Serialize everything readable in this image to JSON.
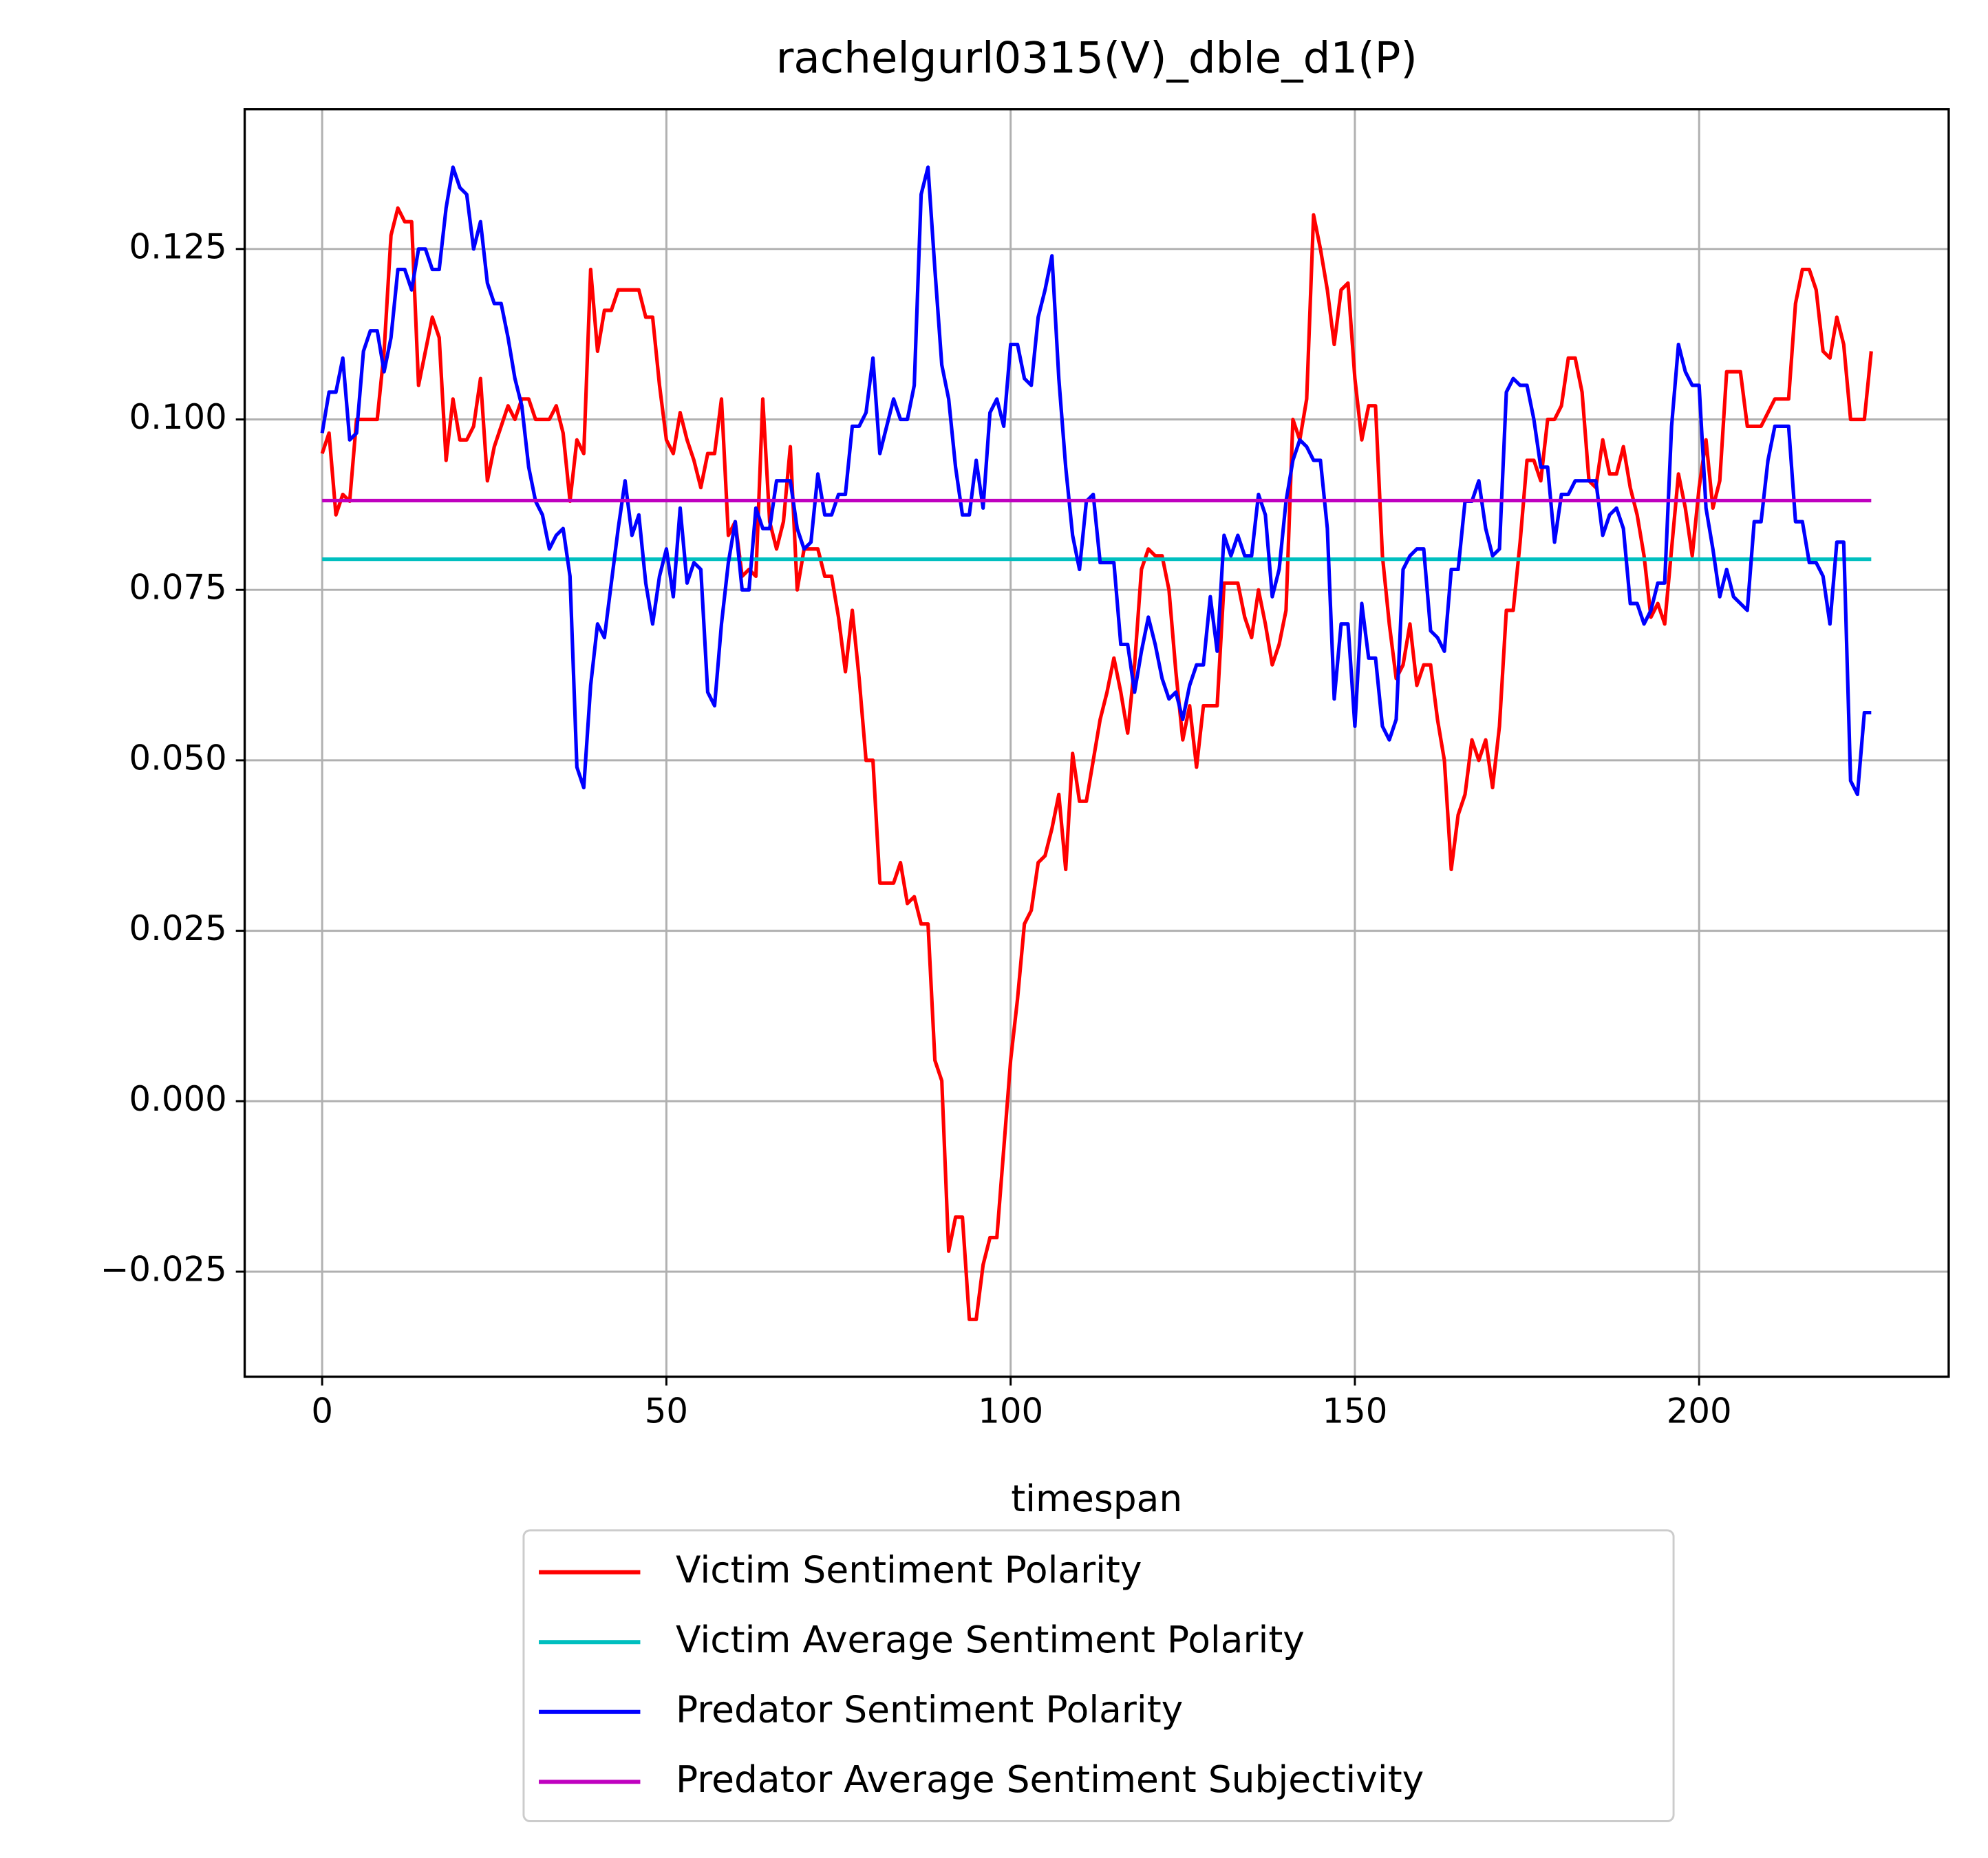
{
  "chart_data": {
    "type": "line",
    "title": "rachelgurl0315(V)_dble_d1(P)",
    "x_label": "timespan",
    "x": [
      0,
      1,
      2,
      3,
      4,
      5,
      6,
      7,
      8,
      9,
      10,
      11,
      12,
      13,
      14,
      15,
      16,
      17,
      18,
      19,
      20,
      21,
      22,
      23,
      24,
      25,
      26,
      27,
      28,
      29,
      30,
      31,
      32,
      33,
      34,
      35,
      36,
      37,
      38,
      39,
      40,
      41,
      42,
      43,
      44,
      45,
      46,
      47,
      48,
      49,
      50,
      51,
      52,
      53,
      54,
      55,
      56,
      57,
      58,
      59,
      60,
      61,
      62,
      63,
      64,
      65,
      66,
      67,
      68,
      69,
      70,
      71,
      72,
      73,
      74,
      75,
      76,
      77,
      78,
      79,
      80,
      81,
      82,
      83,
      84,
      85,
      86,
      87,
      88,
      89,
      90,
      91,
      92,
      93,
      94,
      95,
      96,
      97,
      98,
      99,
      100,
      101,
      102,
      103,
      104,
      105,
      106,
      107,
      108,
      109,
      110,
      111,
      112,
      113,
      114,
      115,
      116,
      117,
      118,
      119,
      120,
      121,
      122,
      123,
      124,
      125,
      126,
      127,
      128,
      129,
      130,
      131,
      132,
      133,
      134,
      135,
      136,
      137,
      138,
      139,
      140,
      141,
      142,
      143,
      144,
      145,
      146,
      147,
      148,
      149,
      150,
      151,
      152,
      153,
      154,
      155,
      156,
      157,
      158,
      159,
      160,
      161,
      162,
      163,
      164,
      165,
      166,
      167,
      168,
      169,
      170,
      171,
      172,
      173,
      174,
      175,
      176,
      177,
      178,
      179,
      180,
      181,
      182,
      183,
      184,
      185,
      186,
      187,
      188,
      189,
      190,
      191,
      192,
      193,
      194,
      195,
      196,
      197,
      198,
      199,
      200,
      201,
      202,
      203,
      204,
      205,
      206,
      207,
      208,
      209,
      210,
      211,
      212,
      213,
      214,
      215,
      216,
      217,
      218,
      219,
      220,
      221,
      222,
      223,
      224,
      225
    ],
    "series": [
      {
        "name": "Victim Sentiment Polarity",
        "color": "#ff0000",
        "values": [
          0.095,
          0.098,
          0.086,
          0.089,
          0.088,
          0.1,
          0.1,
          0.1,
          0.1,
          0.11,
          0.127,
          0.131,
          0.129,
          0.129,
          0.105,
          0.11,
          0.115,
          0.112,
          0.094,
          0.103,
          0.097,
          0.097,
          0.099,
          0.106,
          0.091,
          0.096,
          0.099,
          0.102,
          0.1,
          0.103,
          0.103,
          0.1,
          0.1,
          0.1,
          0.102,
          0.098,
          0.088,
          0.097,
          0.095,
          0.122,
          0.11,
          0.116,
          0.116,
          0.119,
          0.119,
          0.119,
          0.119,
          0.115,
          0.115,
          0.105,
          0.097,
          0.095,
          0.101,
          0.097,
          0.094,
          0.09,
          0.095,
          0.095,
          0.103,
          0.083,
          0.085,
          0.077,
          0.078,
          0.077,
          0.103,
          0.085,
          0.081,
          0.085,
          0.096,
          0.075,
          0.081,
          0.081,
          0.081,
          0.077,
          0.077,
          0.071,
          0.063,
          0.072,
          0.062,
          0.05,
          0.05,
          0.032,
          0.032,
          0.032,
          0.035,
          0.029,
          0.03,
          0.026,
          0.026,
          0.006,
          0.003,
          -0.022,
          -0.017,
          -0.017,
          -0.032,
          -0.032,
          -0.024,
          -0.02,
          -0.02,
          -0.007,
          0.006,
          0.015,
          0.026,
          0.028,
          0.035,
          0.036,
          0.04,
          0.045,
          0.034,
          0.051,
          0.044,
          0.044,
          0.05,
          0.056,
          0.06,
          0.065,
          0.06,
          0.054,
          0.064,
          0.078,
          0.081,
          0.08,
          0.08,
          0.075,
          0.063,
          0.053,
          0.058,
          0.049,
          0.058,
          0.058,
          0.058,
          0.076,
          0.076,
          0.076,
          0.071,
          0.068,
          0.075,
          0.07,
          0.064,
          0.067,
          0.072,
          0.1,
          0.097,
          0.103,
          0.13,
          0.125,
          0.119,
          0.111,
          0.119,
          0.12,
          0.106,
          0.097,
          0.102,
          0.102,
          0.08,
          0.07,
          0.062,
          0.064,
          0.07,
          0.061,
          0.064,
          0.064,
          0.056,
          0.05,
          0.034,
          0.042,
          0.045,
          0.053,
          0.05,
          0.053,
          0.046,
          0.055,
          0.072,
          0.072,
          0.082,
          0.094,
          0.094,
          0.091,
          0.1,
          0.1,
          0.102,
          0.109,
          0.109,
          0.104,
          0.091,
          0.09,
          0.097,
          0.092,
          0.092,
          0.096,
          0.09,
          0.086,
          0.08,
          0.071,
          0.073,
          0.07,
          0.081,
          0.092,
          0.087,
          0.08,
          0.09,
          0.097,
          0.087,
          0.091,
          0.107,
          0.107,
          0.107,
          0.099,
          0.099,
          0.099,
          0.101,
          0.103,
          0.103,
          0.103,
          0.117,
          0.122,
          0.122,
          0.119,
          0.11,
          0.109,
          0.115,
          0.111,
          0.1,
          0.1,
          0.1,
          0.11
        ]
      },
      {
        "name": "Victim Average Sentiment Polarity",
        "color": "#00bfbf",
        "value": 0.0795
      },
      {
        "name": "Predator Sentiment Polarity",
        "color": "#0000ff",
        "values": [
          0.098,
          0.104,
          0.104,
          0.109,
          0.097,
          0.098,
          0.11,
          0.113,
          0.113,
          0.107,
          0.112,
          0.122,
          0.122,
          0.119,
          0.125,
          0.125,
          0.122,
          0.122,
          0.131,
          0.137,
          0.134,
          0.133,
          0.125,
          0.129,
          0.12,
          0.117,
          0.117,
          0.112,
          0.106,
          0.102,
          0.093,
          0.088,
          0.086,
          0.081,
          0.083,
          0.084,
          0.077,
          0.049,
          0.046,
          0.061,
          0.07,
          0.068,
          0.076,
          0.084,
          0.091,
          0.083,
          0.086,
          0.076,
          0.07,
          0.077,
          0.081,
          0.074,
          0.087,
          0.076,
          0.079,
          0.078,
          0.06,
          0.058,
          0.07,
          0.079,
          0.085,
          0.075,
          0.075,
          0.087,
          0.084,
          0.084,
          0.091,
          0.091,
          0.091,
          0.084,
          0.081,
          0.082,
          0.092,
          0.086,
          0.086,
          0.089,
          0.089,
          0.099,
          0.099,
          0.101,
          0.109,
          0.095,
          0.099,
          0.103,
          0.1,
          0.1,
          0.105,
          0.133,
          0.137,
          0.122,
          0.108,
          0.103,
          0.093,
          0.086,
          0.086,
          0.094,
          0.087,
          0.101,
          0.103,
          0.099,
          0.111,
          0.111,
          0.106,
          0.105,
          0.115,
          0.119,
          0.124,
          0.106,
          0.093,
          0.083,
          0.078,
          0.088,
          0.089,
          0.079,
          0.079,
          0.079,
          0.067,
          0.067,
          0.06,
          0.066,
          0.071,
          0.067,
          0.062,
          0.059,
          0.06,
          0.056,
          0.061,
          0.064,
          0.064,
          0.074,
          0.066,
          0.083,
          0.08,
          0.083,
          0.08,
          0.08,
          0.089,
          0.086,
          0.074,
          0.078,
          0.088,
          0.094,
          0.097,
          0.096,
          0.094,
          0.094,
          0.084,
          0.059,
          0.07,
          0.07,
          0.055,
          0.073,
          0.065,
          0.065,
          0.055,
          0.053,
          0.056,
          0.078,
          0.08,
          0.081,
          0.081,
          0.069,
          0.068,
          0.066,
          0.078,
          0.078,
          0.088,
          0.088,
          0.091,
          0.084,
          0.08,
          0.081,
          0.104,
          0.106,
          0.105,
          0.105,
          0.1,
          0.093,
          0.093,
          0.082,
          0.089,
          0.089,
          0.091,
          0.091,
          0.091,
          0.091,
          0.083,
          0.086,
          0.087,
          0.084,
          0.073,
          0.073,
          0.07,
          0.072,
          0.076,
          0.076,
          0.099,
          0.111,
          0.107,
          0.105,
          0.105,
          0.087,
          0.081,
          0.074,
          0.078,
          0.074,
          0.073,
          0.072,
          0.085,
          0.085,
          0.094,
          0.099,
          0.099,
          0.099,
          0.085,
          0.085,
          0.079,
          0.079,
          0.077,
          0.07,
          0.082,
          0.082,
          0.047,
          0.045,
          0.057,
          0.057
        ]
      },
      {
        "name": "Predator Average Sentiment Subjectivity",
        "color": "#bf00bf",
        "value": 0.0881
      }
    ],
    "xlim": [
      -11.25,
      236.25
    ],
    "xticks": [
      0,
      50,
      100,
      150,
      200
    ],
    "ylim": [
      -0.0404,
      0.1455
    ],
    "yticks": [
      {
        "value": -0.025,
        "label": "−0.025"
      },
      {
        "value": 0,
        "label": "0.000"
      },
      {
        "value": 0.025,
        "label": "0.025"
      },
      {
        "value": 0.05,
        "label": "0.050"
      },
      {
        "value": 0.075,
        "label": "0.075"
      },
      {
        "value": 0.1,
        "label": "0.100"
      },
      {
        "value": 0.125,
        "label": "0.125"
      }
    ],
    "grid": true,
    "legend": "below"
  }
}
